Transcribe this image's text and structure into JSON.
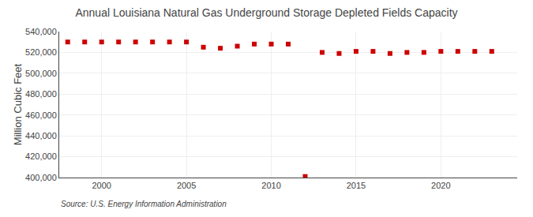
{
  "chart_data": {
    "type": "scatter",
    "title": "Annual Louisiana Natural Gas Underground Storage Depleted Fields Capacity",
    "ylabel": "Million Cubic Feet",
    "annotations": [
      "Source: U.S. Energy Information Administration"
    ],
    "x": [
      1998,
      1999,
      2000,
      2001,
      2002,
      2003,
      2004,
      2005,
      2006,
      2007,
      2008,
      2009,
      2010,
      2011,
      2012,
      2013,
      2014,
      2015,
      2016,
      2017,
      2018,
      2019,
      2020,
      2021,
      2022,
      2023
    ],
    "values": [
      530000,
      530000,
      530000,
      530000,
      530000,
      530000,
      530000,
      530000,
      525000,
      524000,
      526000,
      528000,
      528000,
      528000,
      401000,
      520000,
      519000,
      521000,
      521000,
      519000,
      520000,
      520000,
      521000,
      521000,
      521000,
      521000
    ],
    "color": "#cc0000",
    "marker": "square",
    "xlim": [
      1997.5,
      2024.5
    ],
    "xticks": [
      2000,
      2005,
      2010,
      2015,
      2020
    ],
    "ylim": [
      400000,
      540000
    ],
    "yticks": [
      {
        "value": 400000,
        "label": "400,000"
      },
      {
        "value": 420000,
        "label": "420,000"
      },
      {
        "value": 440000,
        "label": "440,000"
      },
      {
        "value": 460000,
        "label": "460,000"
      },
      {
        "value": 480000,
        "label": "480,000"
      },
      {
        "value": 500000,
        "label": "500,000"
      },
      {
        "value": 520000,
        "label": "520,000"
      },
      {
        "value": 540000,
        "label": "540,000"
      }
    ],
    "grid": true
  }
}
